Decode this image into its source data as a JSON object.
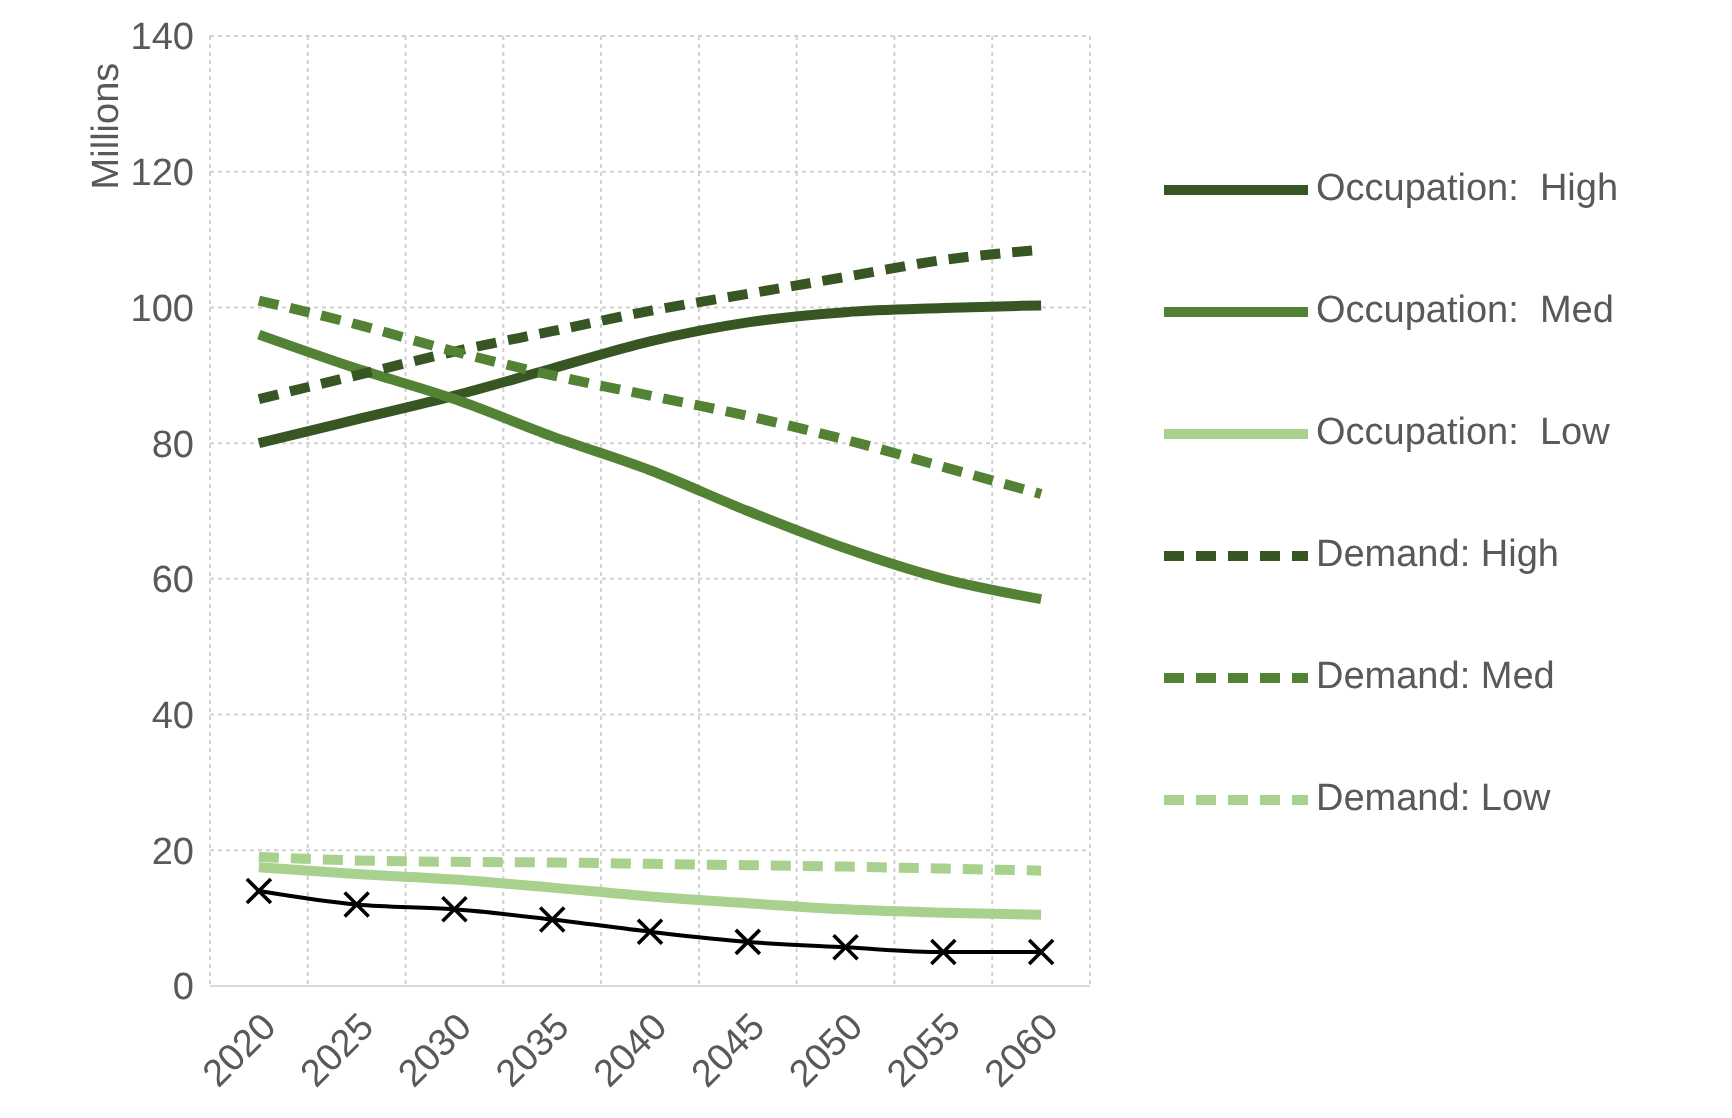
{
  "chart_data": {
    "type": "line",
    "ylabel": "Millions",
    "categories": [
      "2020",
      "2025",
      "2030",
      "2035",
      "2040",
      "2045",
      "2050",
      "2055",
      "2060"
    ],
    "ylim": [
      0,
      140
    ],
    "yticks": [
      0,
      20,
      40,
      60,
      80,
      100,
      120,
      140
    ],
    "grid": true,
    "legend": "right",
    "marker": "none",
    "series": [
      {
        "name": "Occupation:  High",
        "color": "#375623",
        "line_style": "solid",
        "values": [
          80,
          83.5,
          87,
          91,
          95,
          97.8,
          99.3,
          99.9,
          100.3
        ]
      },
      {
        "name": "Occupation:  Med",
        "color": "#548235",
        "line_style": "solid",
        "values": [
          96,
          91,
          86.5,
          81,
          76,
          70,
          64.5,
          60,
          57
        ]
      },
      {
        "name": "Occupation:  Low",
        "color": "#a9d18e",
        "line_style": "solid",
        "values": [
          17.5,
          16.5,
          15.7,
          14.5,
          13.2,
          12.2,
          11.3,
          10.8,
          10.5
        ]
      },
      {
        "name": "Demand: High",
        "color": "#375623",
        "line_style": "dashed",
        "values": [
          86.5,
          90,
          93.5,
          96.5,
          99.5,
          102,
          104.5,
          107,
          108.5
        ]
      },
      {
        "name": "Demand: Med",
        "color": "#548235",
        "line_style": "dashed",
        "values": [
          101,
          97.5,
          93.5,
          90,
          87,
          84,
          80.5,
          76.5,
          72.5
        ]
      },
      {
        "name": "Demand: Low",
        "color": "#a9d18e",
        "line_style": "dashed",
        "values": [
          19,
          18.5,
          18.3,
          18.2,
          18,
          17.8,
          17.6,
          17.3,
          17
        ]
      },
      {
        "color": "#000000",
        "line_style": "solid",
        "marker": "cross",
        "values": [
          14,
          12,
          11.3,
          9.8,
          8,
          6.5,
          5.7,
          5,
          5
        ]
      }
    ]
  }
}
